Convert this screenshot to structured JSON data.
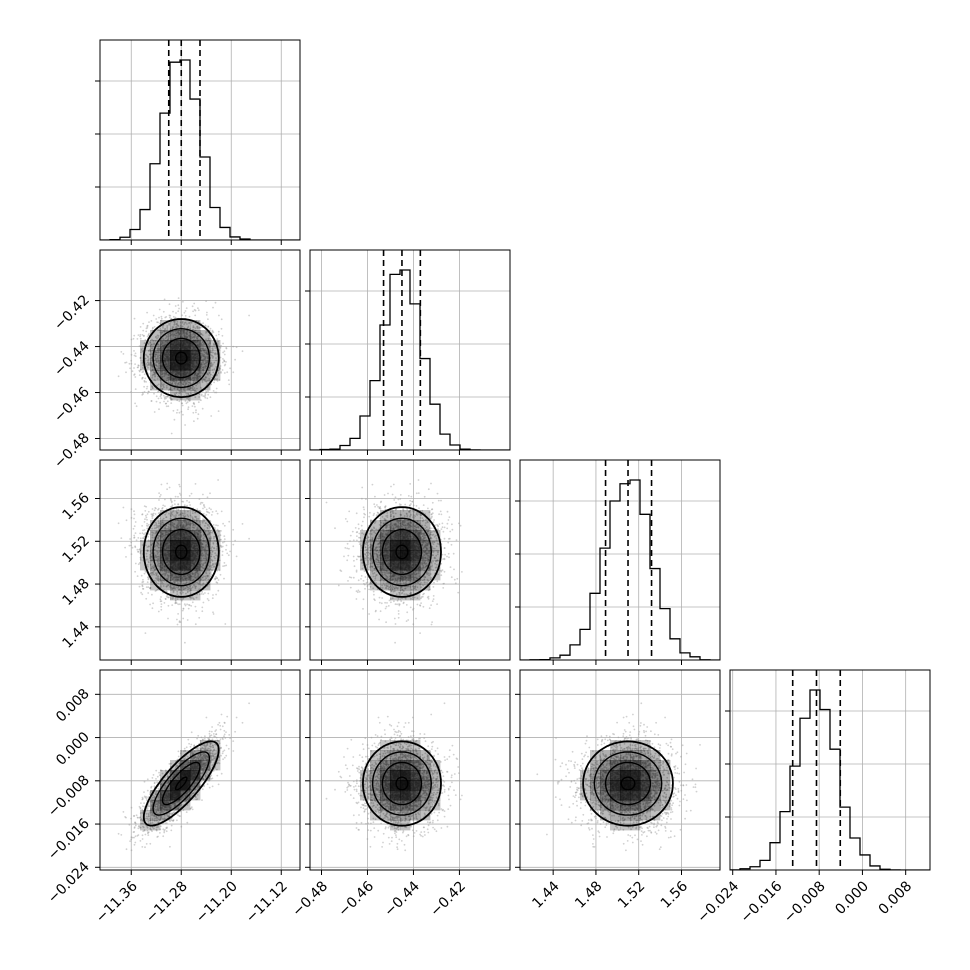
{
  "chart_data": {
    "type": "corner",
    "parameters": [
      {
        "range": [
          -11.41,
          -11.09
        ],
        "ticks": [
          "−11.36",
          "−11.28",
          "−11.20",
          "−11.12"
        ],
        "tick_values": [
          -11.36,
          -11.28,
          -11.2,
          -11.12
        ],
        "mean": -11.28,
        "sigma": 0.03,
        "quantiles": [
          -11.3,
          -11.28,
          -11.25
        ]
      },
      {
        "range": [
          -0.485,
          -0.398
        ],
        "ticks": [
          "−0.48",
          "−0.46",
          "−0.44",
          "−0.42"
        ],
        "tick_values": [
          -0.48,
          -0.46,
          -0.44,
          -0.42
        ],
        "mean": -0.445,
        "sigma": 0.0085,
        "quantiles": [
          -0.453,
          -0.445,
          -0.437
        ]
      },
      {
        "range": [
          1.409,
          1.596
        ],
        "ticks": [
          "1.44",
          "1.48",
          "1.52",
          "1.56"
        ],
        "tick_values": [
          1.44,
          1.48,
          1.52,
          1.56
        ],
        "mean": 1.51,
        "sigma": 0.021,
        "quantiles": [
          1.489,
          1.51,
          1.532
        ]
      },
      {
        "range": [
          -0.0245,
          0.0125
        ],
        "ticks": [
          "−0.024",
          "−0.016",
          "−0.008",
          "0.000",
          "0.008"
        ],
        "tick_values": [
          -0.024,
          -0.016,
          -0.008,
          0.0,
          0.008
        ],
        "mean": -0.0085,
        "sigma": 0.0039,
        "quantiles": [
          -0.0129,
          -0.0085,
          -0.0041
        ]
      }
    ],
    "correlations": [
      [
        1,
        0,
        0,
        0.8
      ],
      [
        0,
        1,
        0,
        0
      ],
      [
        0,
        0,
        1,
        0
      ],
      [
        0.8,
        0,
        0,
        1
      ]
    ],
    "histogram_bins": 20,
    "quantile_line_style": "dashed",
    "grid": true,
    "colors": {
      "points": "#999999",
      "density": "#000000",
      "lines": "#000000",
      "grid": "#b0b0b0"
    }
  }
}
